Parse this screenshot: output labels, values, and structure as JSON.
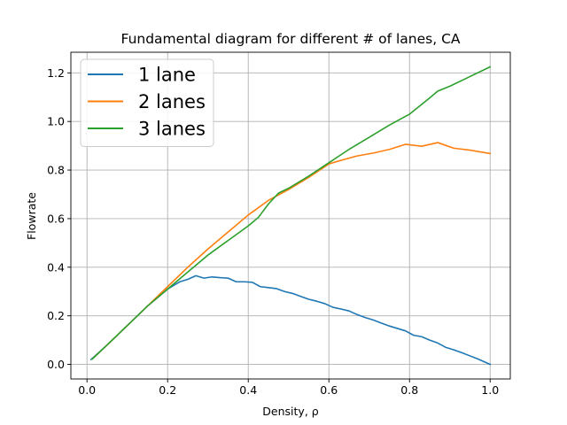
{
  "chart_data": {
    "type": "line",
    "title": "Fundamental diagram for different # of lanes, CA",
    "xlabel": "Density, ρ",
    "ylabel": "Flowrate",
    "xlim": [
      -0.04,
      1.05
    ],
    "ylim": [
      -0.06,
      1.285
    ],
    "xticks": [
      "0.0",
      "0.2",
      "0.4",
      "0.6",
      "0.8",
      "1.0"
    ],
    "yticks": [
      "0.0",
      "0.2",
      "0.4",
      "0.6",
      "0.8",
      "1.0",
      "1.2"
    ],
    "grid": true,
    "legend_position": "upper-left",
    "series": [
      {
        "name": "1 lane",
        "color": "#1f77b4",
        "x": [
          0.01,
          0.05,
          0.1,
          0.15,
          0.2,
          0.23,
          0.25,
          0.27,
          0.29,
          0.31,
          0.33,
          0.35,
          0.37,
          0.39,
          0.41,
          0.43,
          0.45,
          0.47,
          0.49,
          0.51,
          0.53,
          0.55,
          0.57,
          0.59,
          0.61,
          0.63,
          0.65,
          0.67,
          0.69,
          0.71,
          0.73,
          0.75,
          0.77,
          0.79,
          0.81,
          0.83,
          0.85,
          0.87,
          0.89,
          0.91,
          0.93,
          0.95,
          0.97,
          1.0
        ],
        "y": [
          0.02,
          0.08,
          0.16,
          0.24,
          0.31,
          0.34,
          0.35,
          0.365,
          0.355,
          0.36,
          0.357,
          0.355,
          0.34,
          0.34,
          0.338,
          0.32,
          0.316,
          0.312,
          0.3,
          0.292,
          0.28,
          0.268,
          0.26,
          0.25,
          0.235,
          0.228,
          0.22,
          0.205,
          0.193,
          0.183,
          0.17,
          0.158,
          0.148,
          0.138,
          0.12,
          0.114,
          0.1,
          0.088,
          0.07,
          0.06,
          0.048,
          0.035,
          0.022,
          0.0
        ]
      },
      {
        "name": "2 lanes",
        "color": "#ff7f0e",
        "x": [
          0.015,
          0.05,
          0.1,
          0.15,
          0.2,
          0.25,
          0.3,
          0.35,
          0.4,
          0.45,
          0.5,
          0.55,
          0.6,
          0.63,
          0.67,
          0.71,
          0.75,
          0.79,
          0.83,
          0.87,
          0.91,
          0.95,
          1.0
        ],
        "y": [
          0.025,
          0.08,
          0.16,
          0.24,
          0.32,
          0.4,
          0.475,
          0.545,
          0.615,
          0.675,
          0.72,
          0.77,
          0.825,
          0.84,
          0.858,
          0.87,
          0.885,
          0.906,
          0.898,
          0.913,
          0.89,
          0.882,
          0.868
        ]
      },
      {
        "name": "3 lanes",
        "color": "#2ca02c",
        "x": [
          0.013,
          0.05,
          0.1,
          0.15,
          0.2,
          0.25,
          0.3,
          0.35,
          0.4,
          0.425,
          0.45,
          0.475,
          0.5,
          0.55,
          0.6,
          0.65,
          0.7,
          0.75,
          0.8,
          0.85,
          0.87,
          0.9,
          0.95,
          1.0
        ],
        "y": [
          0.022,
          0.08,
          0.16,
          0.24,
          0.31,
          0.38,
          0.45,
          0.51,
          0.57,
          0.605,
          0.66,
          0.705,
          0.725,
          0.775,
          0.83,
          0.885,
          0.935,
          0.985,
          1.03,
          1.097,
          1.125,
          1.145,
          1.185,
          1.225
        ]
      }
    ]
  }
}
